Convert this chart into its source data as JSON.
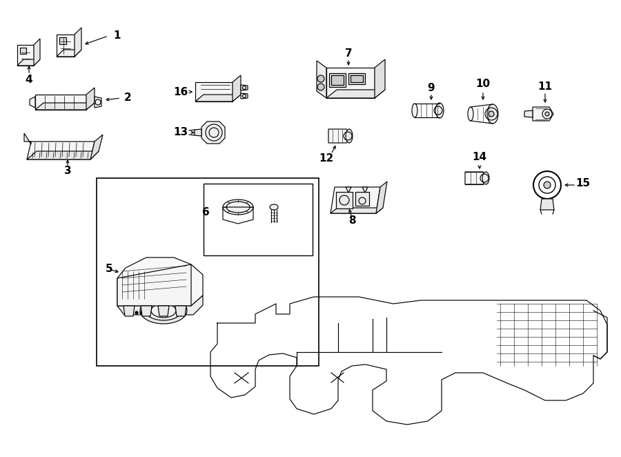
{
  "bg_color": "#ffffff",
  "line_color": "#000000",
  "fig_width": 9.0,
  "fig_height": 6.62,
  "dpi": 100,
  "lw": 0.85,
  "label_fontsize": 11,
  "label_fontweight": "bold"
}
